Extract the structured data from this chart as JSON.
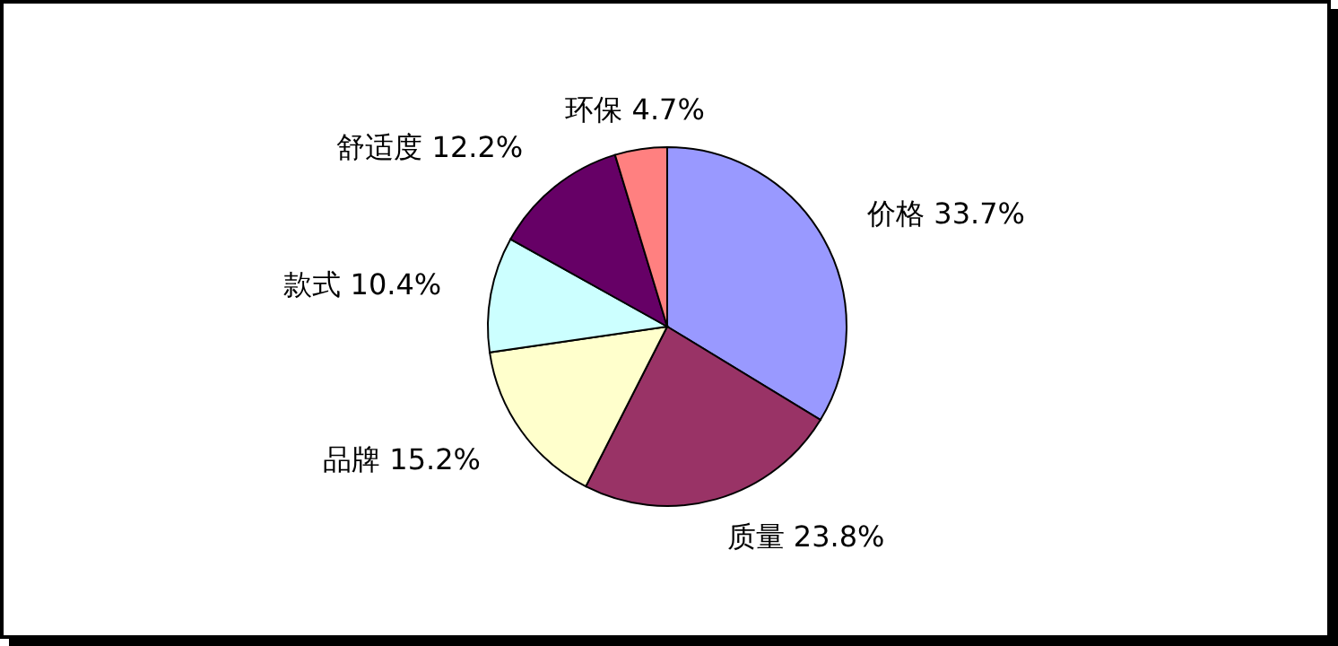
{
  "chart_data": {
    "type": "pie",
    "categories": [
      "价格",
      "质量",
      "品牌",
      "款式",
      "舒适度",
      "环保"
    ],
    "values": [
      33.7,
      23.8,
      15.2,
      10.4,
      12.2,
      4.7
    ],
    "value_labels": [
      "33.7%",
      "23.8%",
      "15.2%",
      "10.4%",
      "12.2%",
      "4.7%"
    ],
    "colors": [
      "#9999ff",
      "#993366",
      "#ffffcc",
      "#ccffff",
      "#660066",
      "#ff8080"
    ]
  }
}
